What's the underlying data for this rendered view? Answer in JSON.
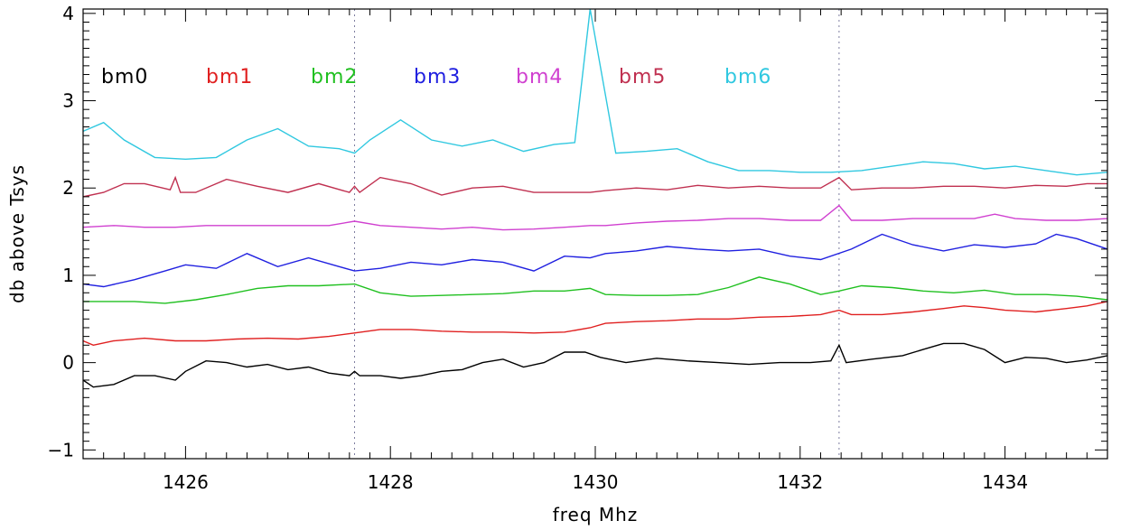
{
  "chart_data": {
    "type": "line",
    "title": "",
    "xlabel": "freq Mhz",
    "ylabel": "db above Tsys",
    "xlim": [
      1425,
      1435
    ],
    "ylim": [
      -1.1,
      4.05
    ],
    "x_ticks": [
      1426,
      1428,
      1430,
      1432,
      1434
    ],
    "y_ticks": [
      -1,
      0,
      1,
      2,
      3,
      4
    ],
    "y_tick_labels": [
      "−1",
      "0",
      "1",
      "2",
      "3",
      "4"
    ],
    "grid": false,
    "legend_position": "top-left",
    "vertical_markers": [
      1427.65,
      1432.38
    ],
    "series": [
      {
        "name": "bm0",
        "color": "#000000",
        "x": [
          1425.0,
          1425.1,
          1425.3,
          1425.5,
          1425.7,
          1425.9,
          1426.0,
          1426.2,
          1426.4,
          1426.6,
          1426.8,
          1427.0,
          1427.2,
          1427.4,
          1427.6,
          1427.65,
          1427.7,
          1427.9,
          1428.1,
          1428.3,
          1428.5,
          1428.7,
          1428.9,
          1429.1,
          1429.3,
          1429.5,
          1429.7,
          1429.9,
          1430.05,
          1430.3,
          1430.6,
          1430.9,
          1431.2,
          1431.5,
          1431.8,
          1432.1,
          1432.3,
          1432.38,
          1432.45,
          1432.7,
          1433.0,
          1433.2,
          1433.4,
          1433.6,
          1433.8,
          1434.0,
          1434.2,
          1434.4,
          1434.6,
          1434.8,
          1435.0
        ],
        "y": [
          -0.2,
          -0.28,
          -0.25,
          -0.15,
          -0.15,
          -0.2,
          -0.1,
          0.02,
          0.0,
          -0.05,
          -0.02,
          -0.08,
          -0.05,
          -0.12,
          -0.15,
          -0.1,
          -0.15,
          -0.15,
          -0.18,
          -0.15,
          -0.1,
          -0.08,
          0.0,
          0.04,
          -0.05,
          0.0,
          0.12,
          0.12,
          0.06,
          0.0,
          0.05,
          0.02,
          0.0,
          -0.02,
          0.0,
          0.0,
          0.02,
          0.2,
          0.0,
          0.04,
          0.08,
          0.15,
          0.22,
          0.22,
          0.15,
          0.0,
          0.06,
          0.05,
          0.0,
          0.03,
          0.08
        ]
      },
      {
        "name": "bm1",
        "color": "#e02020",
        "x": [
          1425.0,
          1425.1,
          1425.3,
          1425.6,
          1425.9,
          1426.2,
          1426.5,
          1426.8,
          1427.1,
          1427.4,
          1427.65,
          1427.9,
          1428.2,
          1428.5,
          1428.8,
          1429.1,
          1429.4,
          1429.7,
          1429.95,
          1430.1,
          1430.4,
          1430.7,
          1431.0,
          1431.3,
          1431.6,
          1431.9,
          1432.2,
          1432.38,
          1432.5,
          1432.8,
          1433.1,
          1433.4,
          1433.6,
          1433.8,
          1434.0,
          1434.3,
          1434.6,
          1434.8,
          1435.0
        ],
        "y": [
          0.25,
          0.2,
          0.25,
          0.28,
          0.25,
          0.25,
          0.27,
          0.28,
          0.27,
          0.3,
          0.34,
          0.38,
          0.38,
          0.36,
          0.35,
          0.35,
          0.34,
          0.35,
          0.4,
          0.45,
          0.47,
          0.48,
          0.5,
          0.5,
          0.52,
          0.53,
          0.55,
          0.6,
          0.55,
          0.55,
          0.58,
          0.62,
          0.65,
          0.63,
          0.6,
          0.58,
          0.62,
          0.65,
          0.7
        ]
      },
      {
        "name": "bm2",
        "color": "#20c020",
        "x": [
          1425.0,
          1425.2,
          1425.5,
          1425.8,
          1426.1,
          1426.4,
          1426.7,
          1427.0,
          1427.3,
          1427.65,
          1427.9,
          1428.2,
          1428.5,
          1428.8,
          1429.1,
          1429.4,
          1429.7,
          1429.95,
          1430.1,
          1430.4,
          1430.7,
          1431.0,
          1431.3,
          1431.6,
          1431.9,
          1432.2,
          1432.38,
          1432.6,
          1432.9,
          1433.2,
          1433.5,
          1433.8,
          1434.1,
          1434.4,
          1434.7,
          1435.0
        ],
        "y": [
          0.7,
          0.7,
          0.7,
          0.68,
          0.72,
          0.78,
          0.85,
          0.88,
          0.88,
          0.9,
          0.8,
          0.76,
          0.77,
          0.78,
          0.79,
          0.82,
          0.82,
          0.85,
          0.78,
          0.77,
          0.77,
          0.78,
          0.86,
          0.98,
          0.9,
          0.78,
          0.82,
          0.88,
          0.86,
          0.82,
          0.8,
          0.83,
          0.78,
          0.78,
          0.76,
          0.72
        ]
      },
      {
        "name": "bm3",
        "color": "#2020e0",
        "x": [
          1425.0,
          1425.2,
          1425.5,
          1425.8,
          1426.0,
          1426.3,
          1426.6,
          1426.9,
          1427.2,
          1427.5,
          1427.65,
          1427.9,
          1428.2,
          1428.5,
          1428.8,
          1429.1,
          1429.4,
          1429.7,
          1429.95,
          1430.1,
          1430.4,
          1430.7,
          1431.0,
          1431.3,
          1431.6,
          1431.9,
          1432.2,
          1432.5,
          1432.8,
          1433.1,
          1433.4,
          1433.7,
          1434.0,
          1434.3,
          1434.5,
          1434.7,
          1435.0
        ],
        "y": [
          0.9,
          0.87,
          0.95,
          1.05,
          1.12,
          1.08,
          1.25,
          1.1,
          1.2,
          1.1,
          1.05,
          1.08,
          1.15,
          1.12,
          1.18,
          1.15,
          1.05,
          1.22,
          1.2,
          1.25,
          1.28,
          1.33,
          1.3,
          1.28,
          1.3,
          1.22,
          1.18,
          1.3,
          1.47,
          1.35,
          1.28,
          1.35,
          1.32,
          1.36,
          1.47,
          1.42,
          1.3
        ]
      },
      {
        "name": "bm4",
        "color": "#d040d0",
        "x": [
          1425.0,
          1425.3,
          1425.6,
          1425.9,
          1426.2,
          1426.5,
          1426.8,
          1427.1,
          1427.4,
          1427.65,
          1427.9,
          1428.2,
          1428.5,
          1428.8,
          1429.1,
          1429.4,
          1429.7,
          1429.95,
          1430.1,
          1430.4,
          1430.7,
          1431.0,
          1431.3,
          1431.6,
          1431.9,
          1432.2,
          1432.38,
          1432.5,
          1432.8,
          1433.1,
          1433.4,
          1433.7,
          1433.9,
          1434.1,
          1434.4,
          1434.7,
          1435.0
        ],
        "y": [
          1.55,
          1.57,
          1.55,
          1.55,
          1.57,
          1.57,
          1.57,
          1.57,
          1.57,
          1.62,
          1.57,
          1.55,
          1.53,
          1.55,
          1.52,
          1.53,
          1.55,
          1.57,
          1.57,
          1.6,
          1.62,
          1.63,
          1.65,
          1.65,
          1.63,
          1.63,
          1.8,
          1.63,
          1.63,
          1.65,
          1.65,
          1.65,
          1.7,
          1.65,
          1.63,
          1.63,
          1.65
        ]
      },
      {
        "name": "bm5",
        "color": "#c03050",
        "x": [
          1425.0,
          1425.2,
          1425.4,
          1425.6,
          1425.85,
          1425.9,
          1425.95,
          1426.1,
          1426.4,
          1426.7,
          1427.0,
          1427.3,
          1427.6,
          1427.65,
          1427.7,
          1427.9,
          1428.2,
          1428.5,
          1428.8,
          1429.1,
          1429.4,
          1429.7,
          1429.95,
          1430.1,
          1430.4,
          1430.7,
          1431.0,
          1431.3,
          1431.6,
          1431.9,
          1432.2,
          1432.38,
          1432.5,
          1432.8,
          1433.1,
          1433.4,
          1433.7,
          1434.0,
          1434.3,
          1434.6,
          1434.8,
          1435.0
        ],
        "y": [
          1.9,
          1.95,
          2.05,
          2.05,
          1.98,
          2.12,
          1.95,
          1.95,
          2.1,
          2.02,
          1.95,
          2.05,
          1.95,
          2.02,
          1.95,
          2.12,
          2.05,
          1.92,
          2.0,
          2.02,
          1.95,
          1.95,
          1.95,
          1.97,
          2.0,
          1.98,
          2.03,
          2.0,
          2.02,
          2.0,
          2.0,
          2.12,
          1.98,
          2.0,
          2.0,
          2.02,
          2.02,
          2.0,
          2.03,
          2.02,
          2.05,
          2.05
        ]
      },
      {
        "name": "bm6",
        "color": "#30c8e0",
        "x": [
          1425.0,
          1425.2,
          1425.4,
          1425.7,
          1426.0,
          1426.3,
          1426.6,
          1426.9,
          1427.2,
          1427.5,
          1427.65,
          1427.8,
          1428.1,
          1428.4,
          1428.7,
          1429.0,
          1429.3,
          1429.6,
          1429.8,
          1429.95,
          1430.2,
          1430.5,
          1430.8,
          1431.1,
          1431.4,
          1431.7,
          1432.0,
          1432.3,
          1432.6,
          1432.9,
          1433.2,
          1433.5,
          1433.8,
          1434.1,
          1434.4,
          1434.7,
          1435.0
        ],
        "y": [
          2.65,
          2.75,
          2.55,
          2.35,
          2.33,
          2.35,
          2.55,
          2.68,
          2.48,
          2.45,
          2.4,
          2.55,
          2.78,
          2.55,
          2.48,
          2.55,
          2.42,
          2.5,
          2.52,
          4.05,
          2.4,
          2.42,
          2.45,
          2.3,
          2.2,
          2.2,
          2.18,
          2.18,
          2.2,
          2.25,
          2.3,
          2.28,
          2.22,
          2.25,
          2.2,
          2.15,
          2.18
        ]
      }
    ]
  }
}
